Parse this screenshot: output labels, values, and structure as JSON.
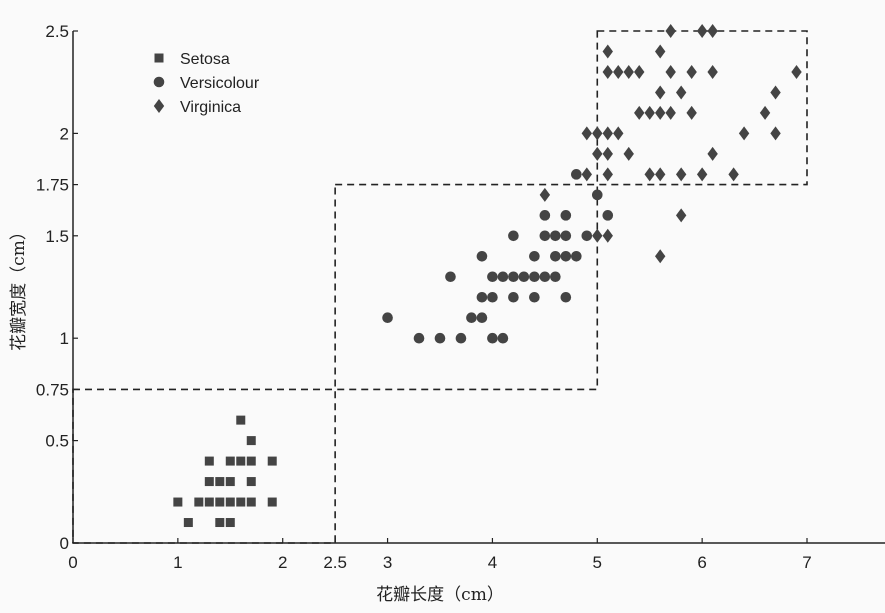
{
  "chart_data": {
    "type": "scatter",
    "title": "",
    "xlabel": "花瓣长度（cm）",
    "ylabel": "花瓣宽度（cm）",
    "xlim": [
      0,
      7
    ],
    "ylim": [
      0,
      2.5
    ],
    "xticks": [
      "0",
      "1",
      "2",
      "2.5",
      "3",
      "4",
      "5",
      "6",
      "7"
    ],
    "yticks": [
      "0",
      "0.5",
      "0.75",
      "1",
      "1.5",
      "1.75",
      "2",
      "2.5"
    ],
    "grid": false,
    "legend_position": "top-left",
    "colors": {
      "marker": "#444444",
      "axis": "#222222"
    },
    "regions": [
      {
        "x": [
          0,
          2.5
        ],
        "y": [
          0,
          0.75
        ]
      },
      {
        "x": [
          2.5,
          5
        ],
        "y": [
          0.75,
          1.75
        ]
      },
      {
        "x": [
          5,
          7
        ],
        "y": [
          1.75,
          2.5
        ]
      }
    ],
    "series": [
      {
        "name": "Setosa",
        "marker": "square",
        "points": [
          [
            1.6,
            0.6
          ],
          [
            1.7,
            0.5
          ],
          [
            1.3,
            0.4
          ],
          [
            1.5,
            0.4
          ],
          [
            1.6,
            0.4
          ],
          [
            1.7,
            0.4
          ],
          [
            1.9,
            0.4
          ],
          [
            1.3,
            0.3
          ],
          [
            1.4,
            0.3
          ],
          [
            1.5,
            0.3
          ],
          [
            1.7,
            0.3
          ],
          [
            1.0,
            0.2
          ],
          [
            1.2,
            0.2
          ],
          [
            1.3,
            0.2
          ],
          [
            1.4,
            0.2
          ],
          [
            1.5,
            0.2
          ],
          [
            1.6,
            0.2
          ],
          [
            1.7,
            0.2
          ],
          [
            1.9,
            0.2
          ],
          [
            1.1,
            0.1
          ],
          [
            1.4,
            0.1
          ],
          [
            1.5,
            0.1
          ]
        ]
      },
      {
        "name": "Versicolour",
        "marker": "circle",
        "points": [
          [
            4.8,
            1.8
          ],
          [
            5.0,
            1.7
          ],
          [
            4.5,
            1.6
          ],
          [
            4.7,
            1.6
          ],
          [
            5.1,
            1.6
          ],
          [
            4.2,
            1.5
          ],
          [
            4.5,
            1.5
          ],
          [
            4.6,
            1.5
          ],
          [
            4.7,
            1.5
          ],
          [
            4.9,
            1.5
          ],
          [
            3.9,
            1.4
          ],
          [
            4.4,
            1.4
          ],
          [
            4.6,
            1.4
          ],
          [
            4.7,
            1.4
          ],
          [
            4.8,
            1.4
          ],
          [
            3.6,
            1.3
          ],
          [
            4.0,
            1.3
          ],
          [
            4.1,
            1.3
          ],
          [
            4.2,
            1.3
          ],
          [
            4.3,
            1.3
          ],
          [
            4.4,
            1.3
          ],
          [
            4.5,
            1.3
          ],
          [
            4.6,
            1.3
          ],
          [
            3.9,
            1.2
          ],
          [
            4.0,
            1.2
          ],
          [
            4.2,
            1.2
          ],
          [
            4.4,
            1.2
          ],
          [
            4.7,
            1.2
          ],
          [
            3.0,
            1.1
          ],
          [
            3.8,
            1.1
          ],
          [
            3.9,
            1.1
          ],
          [
            3.3,
            1.0
          ],
          [
            3.5,
            1.0
          ],
          [
            3.7,
            1.0
          ],
          [
            4.0,
            1.0
          ],
          [
            4.1,
            1.0
          ]
        ]
      },
      {
        "name": "Virginica",
        "marker": "diamond",
        "points": [
          [
            5.7,
            2.5
          ],
          [
            6.0,
            2.5
          ],
          [
            6.1,
            2.5
          ],
          [
            5.1,
            2.4
          ],
          [
            5.6,
            2.4
          ],
          [
            5.1,
            2.3
          ],
          [
            5.2,
            2.3
          ],
          [
            5.3,
            2.3
          ],
          [
            5.4,
            2.3
          ],
          [
            5.7,
            2.3
          ],
          [
            5.9,
            2.3
          ],
          [
            6.1,
            2.3
          ],
          [
            6.9,
            2.3
          ],
          [
            5.6,
            2.2
          ],
          [
            5.8,
            2.2
          ],
          [
            6.7,
            2.2
          ],
          [
            5.4,
            2.1
          ],
          [
            5.5,
            2.1
          ],
          [
            5.6,
            2.1
          ],
          [
            5.7,
            2.1
          ],
          [
            5.9,
            2.1
          ],
          [
            6.6,
            2.1
          ],
          [
            4.9,
            2.0
          ],
          [
            5.0,
            2.0
          ],
          [
            5.1,
            2.0
          ],
          [
            5.2,
            2.0
          ],
          [
            6.4,
            2.0
          ],
          [
            6.7,
            2.0
          ],
          [
            5.0,
            1.9
          ],
          [
            5.1,
            1.9
          ],
          [
            5.3,
            1.9
          ],
          [
            6.1,
            1.9
          ],
          [
            4.9,
            1.8
          ],
          [
            5.1,
            1.8
          ],
          [
            5.5,
            1.8
          ],
          [
            5.6,
            1.8
          ],
          [
            5.8,
            1.8
          ],
          [
            6.0,
            1.8
          ],
          [
            6.3,
            1.8
          ],
          [
            4.5,
            1.7
          ],
          [
            5.8,
            1.6
          ],
          [
            5.0,
            1.5
          ],
          [
            5.1,
            1.5
          ],
          [
            5.6,
            1.4
          ]
        ]
      }
    ]
  }
}
